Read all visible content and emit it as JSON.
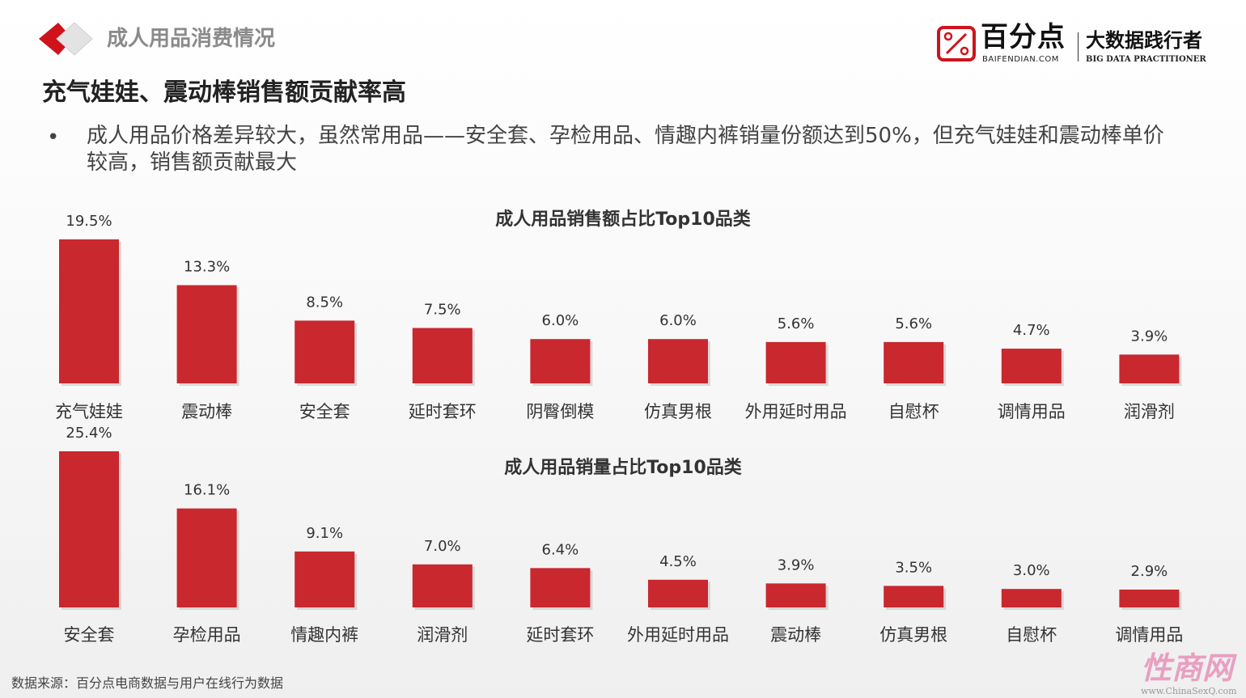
{
  "header": {
    "section_title": "成人用品消费情况",
    "logo": {
      "name": "百分点",
      "sub": "BAIFENDIAN.COM",
      "slogan": "大数据践行者",
      "slogan_sub": "BIG DATA PRACTITIONER"
    }
  },
  "headline": "充气娃娃、震动棒销售额贡献率高",
  "bullet": "•",
  "body_text": "成人用品价格差异较大，虽然常用品——安全套、孕检用品、情趣内裤销量份额达到50%，但充气娃娃和震动棒单价较高，销售额贡献最大",
  "source": "数据来源：百分点电商数据与用户在线行为数据",
  "watermark": {
    "text": "性商网",
    "url": "www.ChinaSexQ.com"
  },
  "colors": {
    "bar": "#c8282e",
    "accent": "#d0121b"
  },
  "chart_data": [
    {
      "type": "bar",
      "title": "成人用品销售额占比Top10品类",
      "unit": "%",
      "categories": [
        "充气娃娃",
        "震动棒",
        "安全套",
        "延时套环",
        "阴臀倒模",
        "仿真男根",
        "外用延时用品",
        "自慰杯",
        "调情用品",
        "润滑剂"
      ],
      "values": [
        19.5,
        13.3,
        8.5,
        7.5,
        6.0,
        6.0,
        5.6,
        5.6,
        4.7,
        3.9
      ],
      "labels": [
        "19.5%",
        "13.3%",
        "8.5%",
        "7.5%",
        "6.0%",
        "6.0%",
        "5.6%",
        "5.6%",
        "4.7%",
        "3.9%"
      ]
    },
    {
      "type": "bar",
      "title": "成人用品销量占比Top10品类",
      "unit": "%",
      "categories": [
        "安全套",
        "孕检用品",
        "情趣内裤",
        "润滑剂",
        "延时套环",
        "外用延时用品",
        "震动棒",
        "仿真男根",
        "自慰杯",
        "调情用品"
      ],
      "values": [
        25.4,
        16.1,
        9.1,
        7.0,
        6.4,
        4.5,
        3.9,
        3.5,
        3.0,
        2.9
      ],
      "labels": [
        "25.4%",
        "16.1%",
        "9.1%",
        "7.0%",
        "6.4%",
        "4.5%",
        "3.9%",
        "3.5%",
        "3.0%",
        "2.9%"
      ]
    }
  ]
}
